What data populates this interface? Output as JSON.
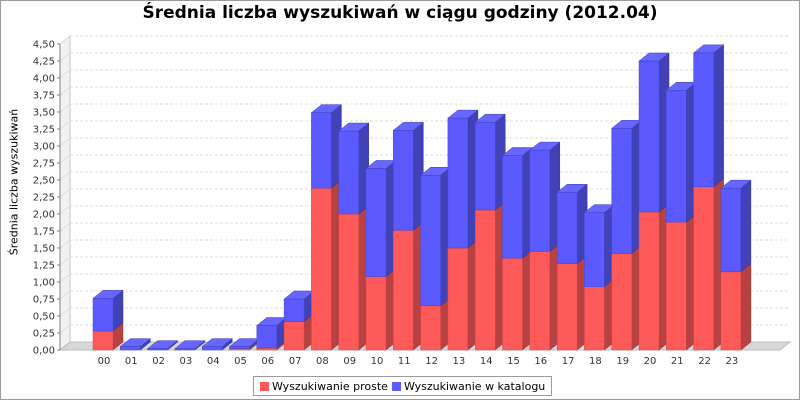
{
  "colors": {
    "proste": "#ff5a5a",
    "katalog": "#5a5aff",
    "grid": "#dddddd"
  },
  "chart_data": {
    "type": "bar",
    "stacked": true,
    "three_d": true,
    "title": "Średnia liczba wyszukiwań w ciągu godziny (2012.04)",
    "xlabel": "",
    "ylabel": "Średnia liczba wyszukiwań",
    "ylim": [
      0,
      4.5
    ],
    "ytick_step": 0.25,
    "ytick_labels": [
      "0,00",
      "0,25",
      "0,50",
      "0,75",
      "1,00",
      "1,25",
      "1,50",
      "1,75",
      "2,00",
      "2,25",
      "2,50",
      "2,75",
      "3,00",
      "3,25",
      "3,50",
      "3,75",
      "4,00",
      "4,25",
      "4,50"
    ],
    "grid": true,
    "legend_position": "bottom",
    "categories": [
      "00",
      "01",
      "02",
      "03",
      "04",
      "05",
      "06",
      "07",
      "08",
      "09",
      "10",
      "11",
      "12",
      "13",
      "14",
      "15",
      "16",
      "17",
      "18",
      "19",
      "20",
      "21",
      "22",
      "23"
    ],
    "series": [
      {
        "name": "Wyszukiwanie proste",
        "values": [
          0.28,
          0.0,
          0.0,
          0.0,
          0.0,
          0.02,
          0.03,
          0.42,
          2.38,
          2.0,
          1.08,
          1.76,
          0.65,
          1.5,
          2.06,
          1.35,
          1.45,
          1.27,
          0.93,
          1.42,
          2.03,
          1.88,
          2.4,
          1.15
        ]
      },
      {
        "name": "Wyszukiwanie w katalogu",
        "values": [
          0.48,
          0.05,
          0.02,
          0.02,
          0.05,
          0.03,
          0.33,
          0.33,
          1.11,
          1.22,
          1.59,
          1.47,
          1.92,
          1.91,
          1.29,
          1.51,
          1.49,
          1.05,
          1.09,
          1.84,
          2.22,
          1.94,
          1.97,
          1.23
        ]
      }
    ]
  }
}
